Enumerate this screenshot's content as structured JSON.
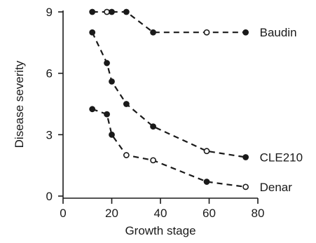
{
  "chart_data": {
    "type": "line",
    "xlabel": "Growth stage",
    "ylabel": "Disease severity",
    "xlim": [
      0,
      80
    ],
    "ylim": [
      0,
      9
    ],
    "xticks": [
      "0",
      "20",
      "40",
      "60",
      "80"
    ],
    "yticks": [
      "0",
      "3",
      "6",
      "9"
    ],
    "grid": false,
    "series": [
      {
        "name": "Baudin",
        "x": [
          12,
          18,
          20,
          26,
          37,
          59,
          75
        ],
        "y": [
          9.0,
          9.0,
          9.0,
          9.0,
          8.0,
          8.0,
          8.0
        ],
        "markers": [
          "filled",
          "open",
          "filled",
          "filled",
          "filled",
          "open",
          "filled"
        ]
      },
      {
        "name": "CLE210",
        "x": [
          12,
          18,
          20,
          26,
          37,
          59,
          75
        ],
        "y": [
          8.0,
          6.5,
          5.6,
          4.5,
          3.4,
          2.2,
          1.9
        ],
        "markers": [
          "filled",
          "filled",
          "filled",
          "filled",
          "filled",
          "open",
          "filled"
        ]
      },
      {
        "name": "Denar",
        "x": [
          12,
          18,
          20,
          26,
          37,
          59,
          75
        ],
        "y": [
          4.25,
          4.0,
          3.0,
          2.0,
          1.75,
          0.7,
          0.45
        ],
        "markers": [
          "filled",
          "filled",
          "filled",
          "open",
          "open",
          "filled",
          "open"
        ]
      }
    ],
    "colors": {
      "ink": "#1a1a1a",
      "background": "#ffffff"
    }
  }
}
